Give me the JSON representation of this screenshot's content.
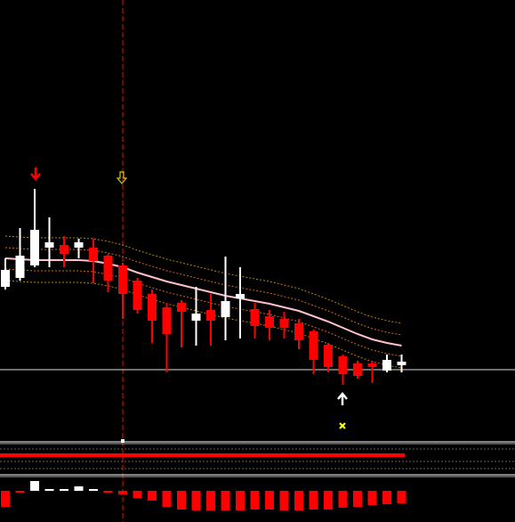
{
  "chart_data": {
    "type": "candlestick",
    "open": [
      178,
      188,
      202,
      222,
      225,
      222,
      222,
      213,
      202,
      185,
      170,
      155,
      160,
      140,
      152,
      144,
      165,
      153,
      145,
      142,
      137,
      128,
      113,
      100,
      92,
      92,
      84,
      90
    ],
    "close": [
      197,
      213,
      242,
      228,
      215,
      228,
      207,
      185,
      170,
      152,
      140,
      125,
      150,
      148,
      140,
      162,
      170,
      134,
      132,
      132,
      118,
      96,
      88,
      80,
      78,
      88,
      96,
      94
    ],
    "high": [
      210,
      244,
      288,
      256,
      235,
      232,
      232,
      215,
      205,
      188,
      175,
      160,
      163,
      178,
      170,
      212,
      200,
      160,
      152,
      150,
      142,
      130,
      115,
      102,
      95,
      95,
      102,
      102
    ],
    "low": [
      175,
      185,
      200,
      200,
      200,
      210,
      182,
      172,
      142,
      148,
      115,
      82,
      110,
      112,
      112,
      118,
      120,
      120,
      118,
      120,
      108,
      80,
      82,
      68,
      75,
      70,
      82,
      82
    ],
    "up_color": "#ffffff",
    "down_color": "#ff0000",
    "ylim": [
      0,
      500
    ],
    "price_line": 85,
    "series": [
      {
        "color": "#ffc0cb",
        "values": [
          210,
          209,
          208,
          208,
          208,
          208,
          207,
          204,
          200,
          194,
          189,
          184,
          180,
          176,
          172,
          168,
          165,
          162,
          159,
          155,
          151,
          145,
          139,
          132,
          125,
          119,
          115,
          112
        ]
      },
      {
        "color": "#d2691e",
        "values": [
          222,
          221,
          220,
          220,
          220,
          220,
          219,
          216,
          212,
          206,
          201,
          196,
          192,
          188,
          184,
          180,
          177,
          174,
          171,
          167,
          163,
          157,
          151,
          144,
          137,
          131,
          127,
          124
        ]
      },
      {
        "color": "#d2691e",
        "values": [
          198,
          197,
          196,
          196,
          196,
          196,
          195,
          192,
          188,
          182,
          177,
          172,
          168,
          164,
          160,
          156,
          153,
          150,
          147,
          143,
          139,
          133,
          127,
          120,
          113,
          107,
          103,
          100
        ]
      },
      {
        "color": "#b8860b",
        "values": [
          235,
          234,
          233,
          233,
          233,
          233,
          232,
          229,
          225,
          219,
          214,
          209,
          205,
          201,
          197,
          193,
          190,
          187,
          184,
          180,
          176,
          170,
          164,
          157,
          150,
          144,
          140,
          137
        ]
      },
      {
        "color": "#b8860b",
        "values": [
          185,
          184,
          183,
          183,
          183,
          183,
          182,
          179,
          175,
          169,
          164,
          159,
          155,
          151,
          147,
          143,
          140,
          137,
          134,
          130,
          126,
          120,
          114,
          107,
          100,
          94,
          90,
          87
        ]
      }
    ],
    "histogram": {
      "ylim": [
        -30,
        15
      ],
      "values": [
        -18,
        -1,
        11,
        2,
        2,
        5,
        2,
        -1,
        -4,
        -8,
        -11,
        -18,
        -21,
        -22,
        -22,
        -22,
        -22,
        -21,
        -21,
        -22,
        -22,
        -21,
        -21,
        -19,
        -18,
        -16,
        -15,
        -14
      ]
    }
  }
}
